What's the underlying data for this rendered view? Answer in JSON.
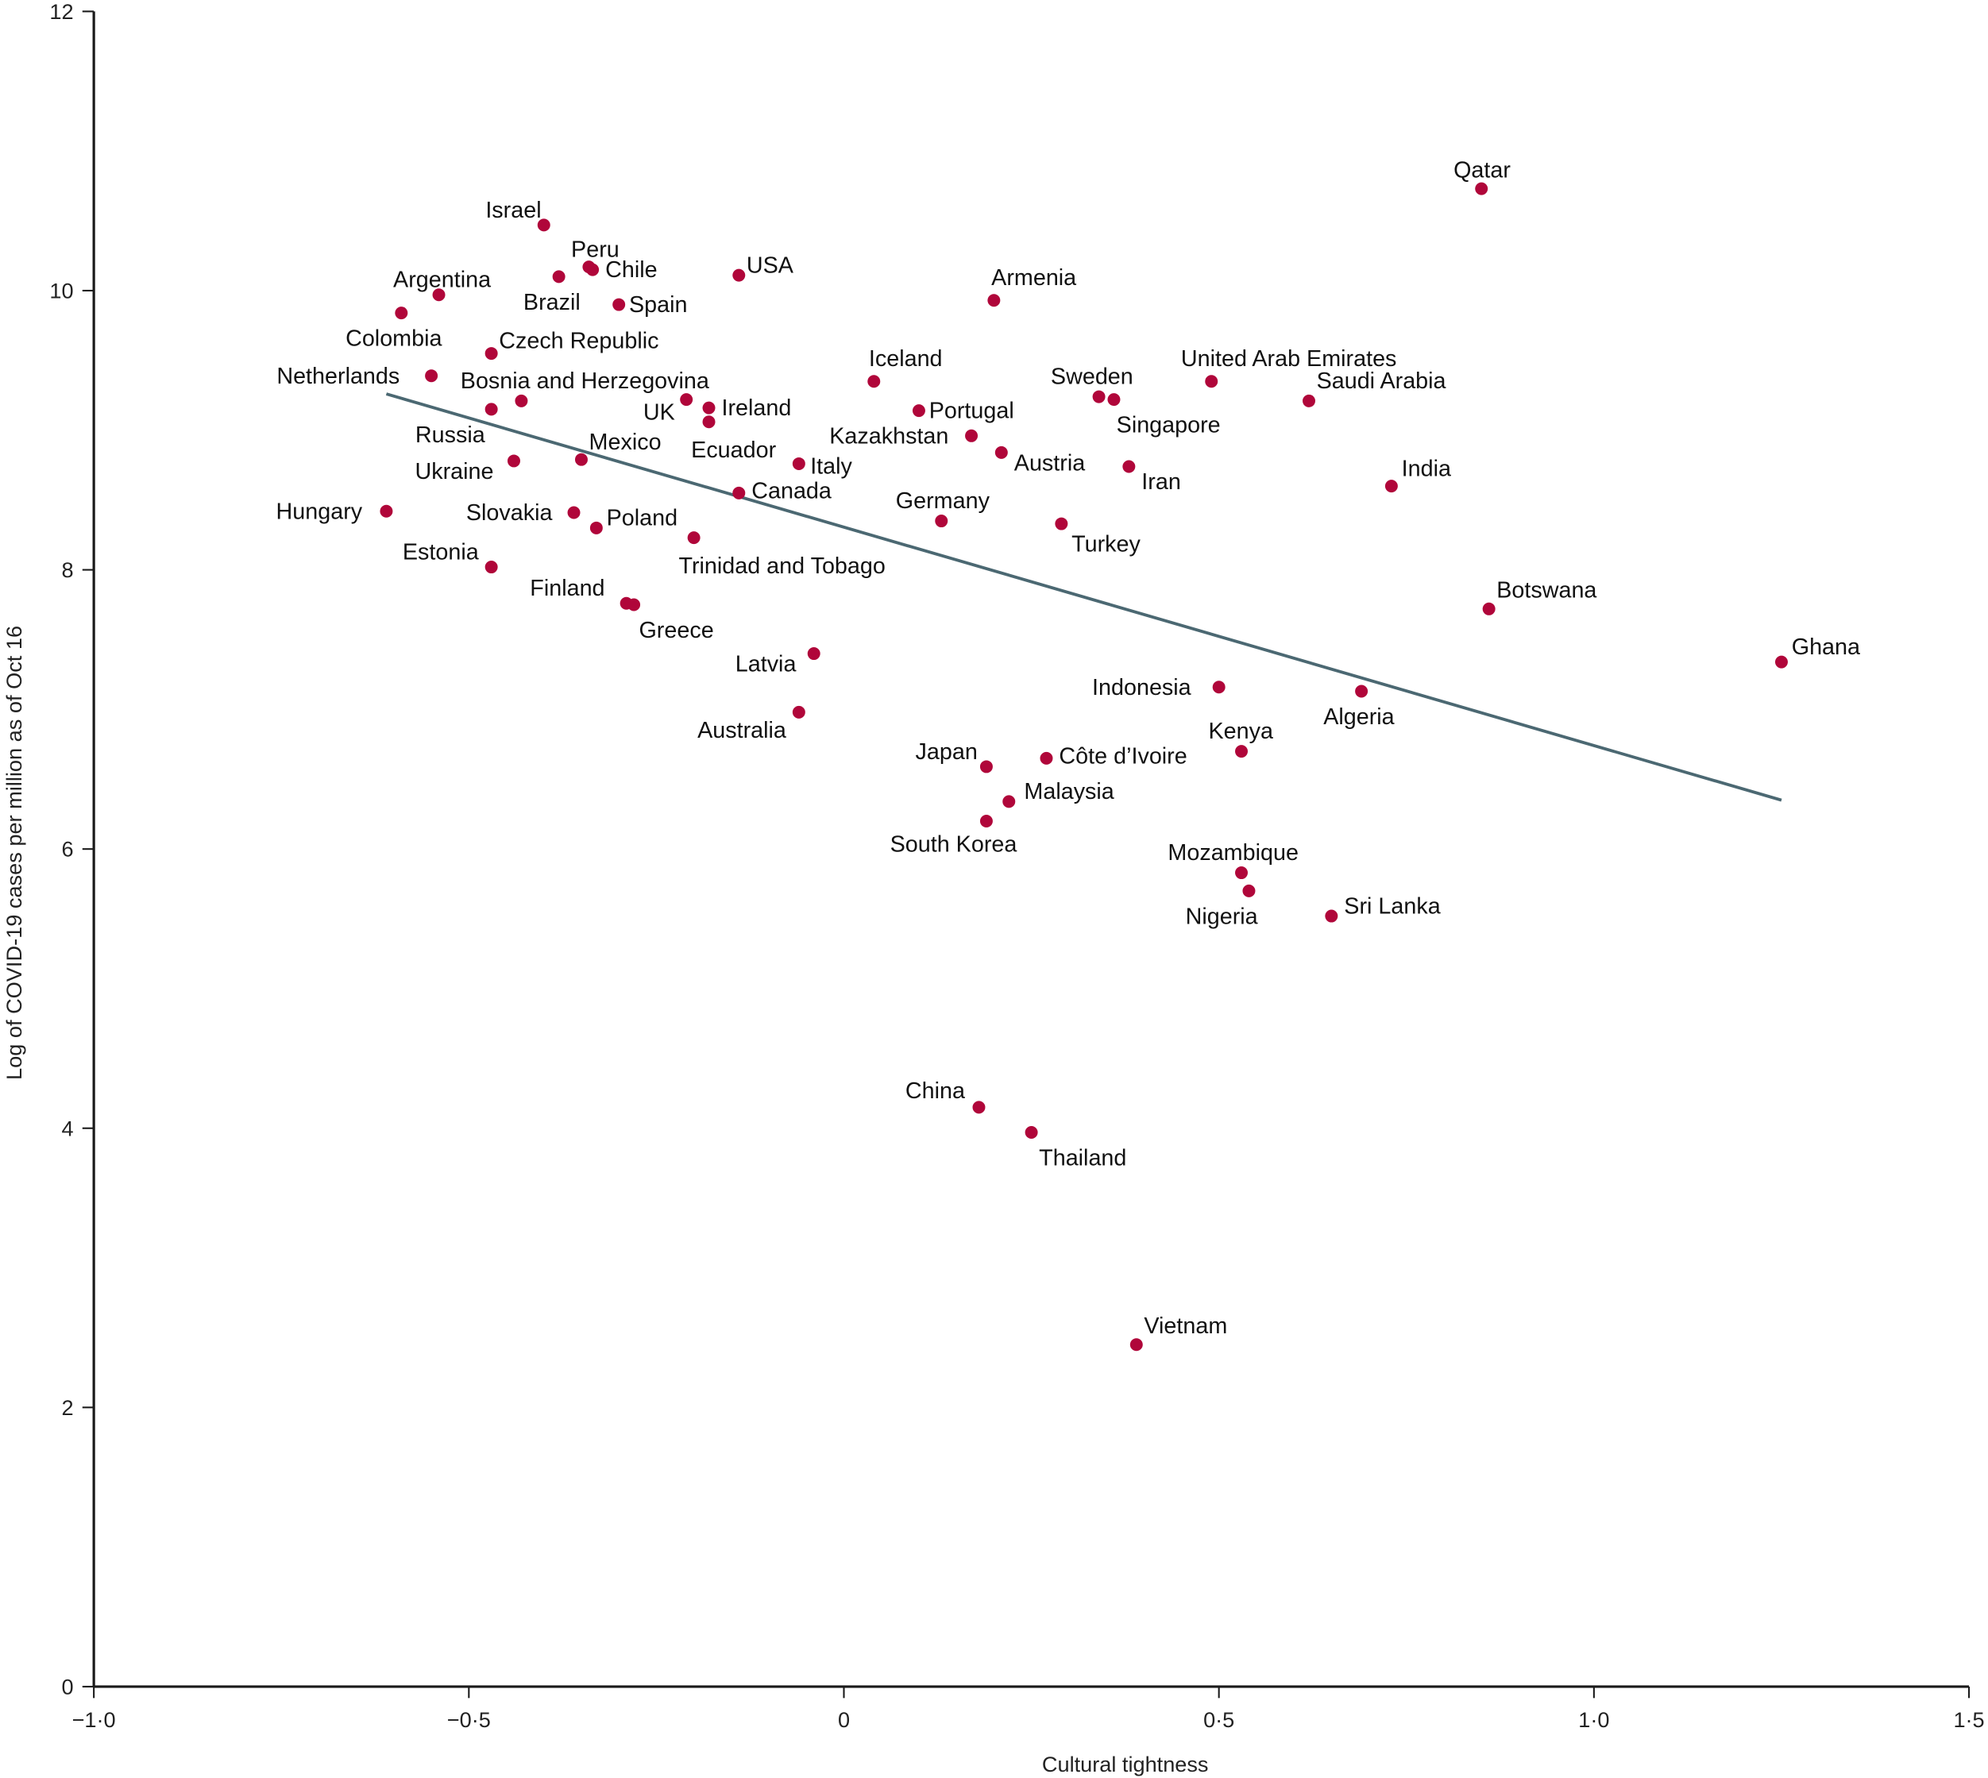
{
  "chart_data": {
    "type": "scatter",
    "title": "",
    "xlabel": "Cultural tightness",
    "ylabel": "Log of COVID-19 cases per million as of Oct 16",
    "xlim": [
      -1.0,
      1.5
    ],
    "ylim": [
      0,
      12
    ],
    "x_ticks": [
      -1.0,
      -0.5,
      0,
      0.5,
      1.0,
      1.5
    ],
    "x_tick_labels": [
      "−1·0",
      "−0·5",
      "0",
      "0·5",
      "1·0",
      "1·5"
    ],
    "y_ticks": [
      0,
      2,
      4,
      6,
      8,
      10,
      12
    ],
    "y_tick_labels": [
      "0",
      "2",
      "4",
      "6",
      "8",
      "10",
      "12"
    ],
    "grid": false,
    "legend": null,
    "colors": {
      "point": "#b0063a",
      "trend_line": "#4b6872",
      "axis": "#1a1a1a"
    },
    "trend_line": {
      "x": [
        -0.61,
        1.25
      ],
      "y": [
        9.26,
        6.35
      ]
    },
    "points": [
      {
        "label": "Israel",
        "x": -0.4,
        "y": 10.47,
        "lx": -46,
        "ly": -12
      },
      {
        "label": "Peru",
        "x": -0.34,
        "y": 10.17,
        "lx": -14,
        "ly": -14
      },
      {
        "label": "Chile",
        "x": -0.335,
        "y": 10.15,
        "lx": 10,
        "ly": 0
      },
      {
        "label": "Brazil",
        "x": -0.38,
        "y": 10.1,
        "lx": -28,
        "ly": 20
      },
      {
        "label": "Argentina",
        "x": -0.54,
        "y": 9.97,
        "lx": -36,
        "ly": -12
      },
      {
        "label": "Colombia",
        "x": -0.59,
        "y": 9.84,
        "lx": -44,
        "ly": 20
      },
      {
        "label": "Spain",
        "x": -0.3,
        "y": 9.9,
        "lx": 8,
        "ly": 0
      },
      {
        "label": "USA",
        "x": -0.14,
        "y": 10.11,
        "lx": 6,
        "ly": -8
      },
      {
        "label": "Czech Republic",
        "x": -0.47,
        "y": 9.55,
        "lx": 6,
        "ly": -10
      },
      {
        "label": "Netherlands",
        "x": -0.55,
        "y": 9.39,
        "lx": -122,
        "ly": 0
      },
      {
        "label": "Bosnia and Herzegovina",
        "x": -0.43,
        "y": 9.21,
        "lx": -48,
        "ly": -16
      },
      {
        "label": "Russia",
        "x": -0.47,
        "y": 9.15,
        "lx": -60,
        "ly": 20
      },
      {
        "label": "UK",
        "x": -0.21,
        "y": 9.22,
        "lx": -34,
        "ly": 10
      },
      {
        "label": "Ireland",
        "x": -0.18,
        "y": 9.16,
        "lx": 10,
        "ly": 0
      },
      {
        "label": "Ecuador",
        "x": -0.18,
        "y": 9.06,
        "lx": -14,
        "ly": 22
      },
      {
        "label": "Mexico",
        "x": -0.35,
        "y": 8.79,
        "lx": 6,
        "ly": -14
      },
      {
        "label": "Ukraine",
        "x": -0.44,
        "y": 8.78,
        "lx": -78,
        "ly": 8
      },
      {
        "label": "Hungary",
        "x": -0.61,
        "y": 8.42,
        "lx": -87,
        "ly": 0
      },
      {
        "label": "Slovakia",
        "x": -0.36,
        "y": 8.41,
        "lx": -85,
        "ly": 0
      },
      {
        "label": "Poland",
        "x": -0.33,
        "y": 8.3,
        "lx": 8,
        "ly": -8
      },
      {
        "label": "Estonia",
        "x": -0.47,
        "y": 8.02,
        "lx": -70,
        "ly": -12
      },
      {
        "label": "Trinidad and Tobago",
        "x": -0.2,
        "y": 8.23,
        "lx": -12,
        "ly": 22
      },
      {
        "label": "Canada",
        "x": -0.14,
        "y": 8.55,
        "lx": 10,
        "ly": -2
      },
      {
        "label": "Italy",
        "x": -0.06,
        "y": 8.76,
        "lx": 9,
        "ly": 2
      },
      {
        "label": "Finland",
        "x": -0.29,
        "y": 7.76,
        "lx": -76,
        "ly": -12
      },
      {
        "label": "Greece",
        "x": -0.28,
        "y": 7.75,
        "lx": 4,
        "ly": 20
      },
      {
        "label": "Latvia",
        "x": -0.04,
        "y": 7.4,
        "lx": -62,
        "ly": 8
      },
      {
        "label": "Australia",
        "x": -0.06,
        "y": 6.98,
        "lx": -80,
        "ly": 14
      },
      {
        "label": "Iceland",
        "x": 0.04,
        "y": 9.35,
        "lx": -4,
        "ly": -18
      },
      {
        "label": "Portugal",
        "x": 0.1,
        "y": 9.14,
        "lx": 8,
        "ly": 0
      },
      {
        "label": "Kazakhstan",
        "x": 0.17,
        "y": 8.96,
        "lx": -112,
        "ly": 0
      },
      {
        "label": "Armenia",
        "x": 0.2,
        "y": 9.93,
        "lx": -2,
        "ly": -18
      },
      {
        "label": "Austria",
        "x": 0.21,
        "y": 8.84,
        "lx": 10,
        "ly": 8
      },
      {
        "label": "Germany",
        "x": 0.13,
        "y": 8.35,
        "lx": -36,
        "ly": -16
      },
      {
        "label": "Turkey",
        "x": 0.29,
        "y": 8.33,
        "lx": 8,
        "ly": 16
      },
      {
        "label": "Sweden",
        "x": 0.34,
        "y": 9.24,
        "lx": -38,
        "ly": -16
      },
      {
        "label": "Singapore",
        "x": 0.36,
        "y": 9.22,
        "lx": 2,
        "ly": 20
      },
      {
        "label": "Iran",
        "x": 0.38,
        "y": 8.74,
        "lx": 10,
        "ly": 12
      },
      {
        "label": "United Arab Emirates",
        "x": 0.49,
        "y": 9.35,
        "lx": -24,
        "ly": -18
      },
      {
        "label": "Saudi Arabia",
        "x": 0.62,
        "y": 9.21,
        "lx": 6,
        "ly": -16
      },
      {
        "label": "India",
        "x": 0.73,
        "y": 8.6,
        "lx": 8,
        "ly": -14
      },
      {
        "label": "Qatar",
        "x": 0.85,
        "y": 10.73,
        "lx": -22,
        "ly": -15
      },
      {
        "label": "Botswana",
        "x": 0.86,
        "y": 7.72,
        "lx": 6,
        "ly": -15
      },
      {
        "label": "Ghana",
        "x": 1.25,
        "y": 7.34,
        "lx": 8,
        "ly": -12
      },
      {
        "label": "Indonesia",
        "x": 0.5,
        "y": 7.16,
        "lx": -100,
        "ly": 0
      },
      {
        "label": "Algeria",
        "x": 0.69,
        "y": 7.13,
        "lx": -30,
        "ly": 20
      },
      {
        "label": "Kenya",
        "x": 0.53,
        "y": 6.7,
        "lx": -26,
        "ly": -16
      },
      {
        "label": "Côte d’Ivoire",
        "x": 0.27,
        "y": 6.65,
        "lx": 10,
        "ly": -2
      },
      {
        "label": "Japan",
        "x": 0.19,
        "y": 6.59,
        "lx": -56,
        "ly": -12
      },
      {
        "label": "Malaysia",
        "x": 0.22,
        "y": 6.34,
        "lx": 12,
        "ly": -8
      },
      {
        "label": "South Korea",
        "x": 0.19,
        "y": 6.2,
        "lx": -76,
        "ly": 18
      },
      {
        "label": "Mozambique",
        "x": 0.53,
        "y": 5.83,
        "lx": -58,
        "ly": -16
      },
      {
        "label": "Nigeria",
        "x": 0.54,
        "y": 5.7,
        "lx": -50,
        "ly": 20
      },
      {
        "label": "Sri Lanka",
        "x": 0.65,
        "y": 5.52,
        "lx": 10,
        "ly": -8
      },
      {
        "label": "China",
        "x": 0.18,
        "y": 4.15,
        "lx": -58,
        "ly": -13
      },
      {
        "label": "Thailand",
        "x": 0.25,
        "y": 3.97,
        "lx": 6,
        "ly": 20
      },
      {
        "label": "Vietnam",
        "x": 0.39,
        "y": 2.45,
        "lx": 6,
        "ly": -15
      }
    ]
  }
}
